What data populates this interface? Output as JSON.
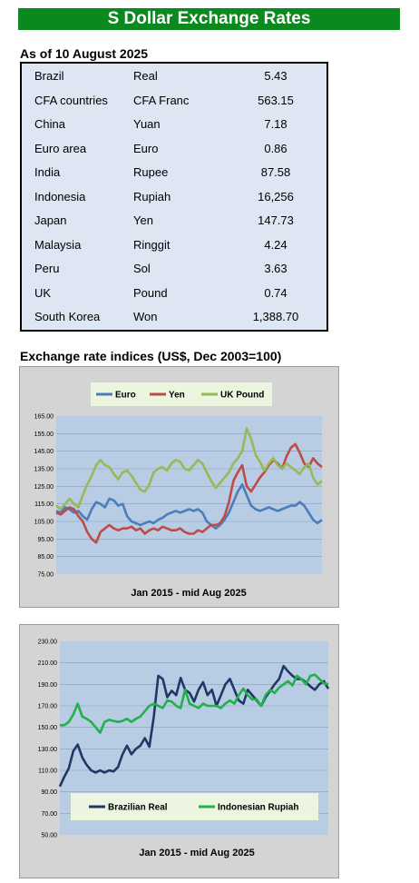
{
  "header": {
    "title": "S Dollar Exchange Rates"
  },
  "rates": {
    "as_of": "As of 10 August 2025",
    "rows": [
      {
        "country": "Brazil",
        "currency": "Real",
        "value": "5.43"
      },
      {
        "country": "CFA countries",
        "currency": "CFA Franc",
        "value": "563.15"
      },
      {
        "country": "China",
        "currency": "Yuan",
        "value": "7.18"
      },
      {
        "country": "Euro area",
        "currency": "Euro",
        "value": "0.86"
      },
      {
        "country": "India",
        "currency": "Rupee",
        "value": "87.58"
      },
      {
        "country": "Indonesia",
        "currency": "Rupiah",
        "value": "16,256"
      },
      {
        "country": "Japan",
        "currency": "Yen",
        "value": "147.73"
      },
      {
        "country": "Malaysia",
        "currency": "Ringgit",
        "value": "4.24"
      },
      {
        "country": "Peru",
        "currency": "Sol",
        "value": "3.63"
      },
      {
        "country": "UK",
        "currency": "Pound",
        "value": "0.74"
      },
      {
        "country": "South Korea",
        "currency": "Won",
        "value": "1,388.70"
      }
    ]
  },
  "indices_title": "Exchange rate indices (US$, Dec 2003=100)",
  "chart_data": [
    {
      "type": "line",
      "xlabel": "Jan 2015 - mid Aug 2025",
      "ylim": [
        75,
        165
      ],
      "yticks": [
        "165.00",
        "155.00",
        "145.00",
        "135.00",
        "125.00",
        "115.00",
        "105.00",
        "95.00",
        "85.00",
        "75.00"
      ],
      "grid": true,
      "legend": "top",
      "colors": {
        "Euro": "#4a7ebb",
        "Yen": "#be4b48",
        "UK Pound": "#98b954"
      },
      "series": [
        {
          "name": "Euro",
          "values": [
            111,
            110,
            113,
            112,
            110,
            111,
            108,
            106,
            112,
            116,
            115,
            113,
            118,
            117,
            114,
            115,
            108,
            105,
            104,
            103,
            104,
            105,
            104,
            106,
            107,
            109,
            110,
            111,
            110,
            111,
            112,
            111,
            112,
            110,
            105,
            103,
            101,
            103,
            106,
            110,
            116,
            122,
            126,
            120,
            114,
            112,
            111,
            112,
            113,
            112,
            111,
            112,
            113,
            114,
            114,
            116,
            114,
            110,
            106,
            104,
            106
          ]
        },
        {
          "name": "Yen",
          "values": [
            110,
            109,
            111,
            113,
            112,
            108,
            105,
            99,
            95,
            93,
            99,
            101,
            103,
            101,
            100,
            101,
            101,
            102,
            100,
            101,
            98,
            100,
            101,
            100,
            102,
            101,
            100,
            100,
            101,
            99,
            98,
            98,
            100,
            99,
            101,
            103,
            103,
            104,
            108,
            116,
            128,
            133,
            137,
            125,
            122,
            126,
            130,
            133,
            137,
            140,
            138,
            135,
            142,
            147,
            149,
            144,
            138,
            136,
            141,
            138,
            136
          ]
        },
        {
          "name": "UK Pound",
          "values": [
            114,
            112,
            115,
            118,
            115,
            113,
            120,
            126,
            131,
            137,
            140,
            137,
            136,
            132,
            129,
            133,
            134,
            131,
            127,
            123,
            122,
            126,
            133,
            135,
            136,
            134,
            138,
            140,
            139,
            135,
            134,
            137,
            140,
            138,
            133,
            128,
            124,
            127,
            130,
            133,
            138,
            141,
            145,
            158,
            152,
            143,
            139,
            134,
            138,
            141,
            137,
            135,
            138,
            136,
            134,
            132,
            136,
            138,
            130,
            126,
            128
          ]
        }
      ]
    },
    {
      "type": "line",
      "xlabel": "Jan 2015 -  mid Aug 2025",
      "ylim": [
        50,
        230
      ],
      "yticks": [
        "230.00",
        "210.00",
        "190.00",
        "170.00",
        "150.00",
        "130.00",
        "110.00",
        "90.00",
        "70.00",
        "50.00"
      ],
      "grid": true,
      "legend": "bottom",
      "colors": {
        "Brazilian Real": "#1f3864",
        "Indonesian Rupiah": "#1fb24a"
      },
      "series": [
        {
          "name": "Brazilian Real",
          "values": [
            95,
            104,
            112,
            128,
            134,
            122,
            115,
            110,
            108,
            110,
            108,
            110,
            109,
            113,
            125,
            133,
            125,
            130,
            133,
            140,
            132,
            160,
            198,
            195,
            178,
            184,
            180,
            196,
            185,
            182,
            174,
            185,
            192,
            180,
            185,
            170,
            180,
            190,
            195,
            185,
            175,
            172,
            185,
            180,
            175,
            170,
            178,
            184,
            190,
            195,
            207,
            202,
            198,
            195,
            195,
            192,
            188,
            185,
            190,
            193,
            186
          ]
        },
        {
          "name": "Indonesian Rupiah",
          "values": [
            152,
            152,
            155,
            162,
            172,
            160,
            158,
            155,
            150,
            145,
            155,
            157,
            156,
            155,
            156,
            158,
            155,
            158,
            160,
            165,
            170,
            172,
            170,
            168,
            175,
            174,
            170,
            168,
            185,
            172,
            170,
            168,
            172,
            170,
            170,
            170,
            168,
            172,
            175,
            172,
            180,
            186,
            180,
            176,
            176,
            170,
            180,
            185,
            182,
            187,
            190,
            193,
            189,
            198,
            195,
            190,
            198,
            199,
            195,
            191,
            190
          ]
        }
      ]
    }
  ]
}
